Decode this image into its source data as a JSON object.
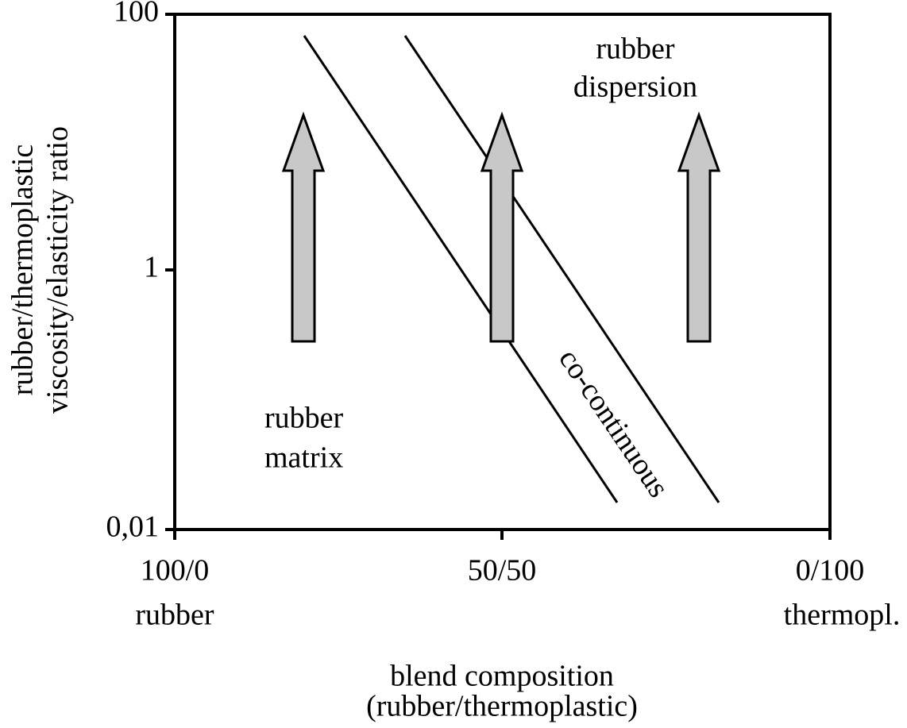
{
  "y_axis": {
    "label_lines": [
      "rubber/thermoplastic",
      "viscosity/elasticity ratio"
    ],
    "ticks": [
      "100",
      "1",
      "0,01"
    ]
  },
  "x_axis": {
    "ticks": [
      "100/0",
      "50/50",
      "0/100"
    ],
    "end_labels": [
      "rubber",
      "thermopl."
    ],
    "label_lines": [
      "blend composition",
      "(rubber/thermoplastic)"
    ]
  },
  "regions": {
    "dispersion": [
      "rubber",
      "dispersion"
    ],
    "matrix": [
      "rubber",
      "matrix"
    ],
    "cocontinuous": "co-continuous"
  }
}
